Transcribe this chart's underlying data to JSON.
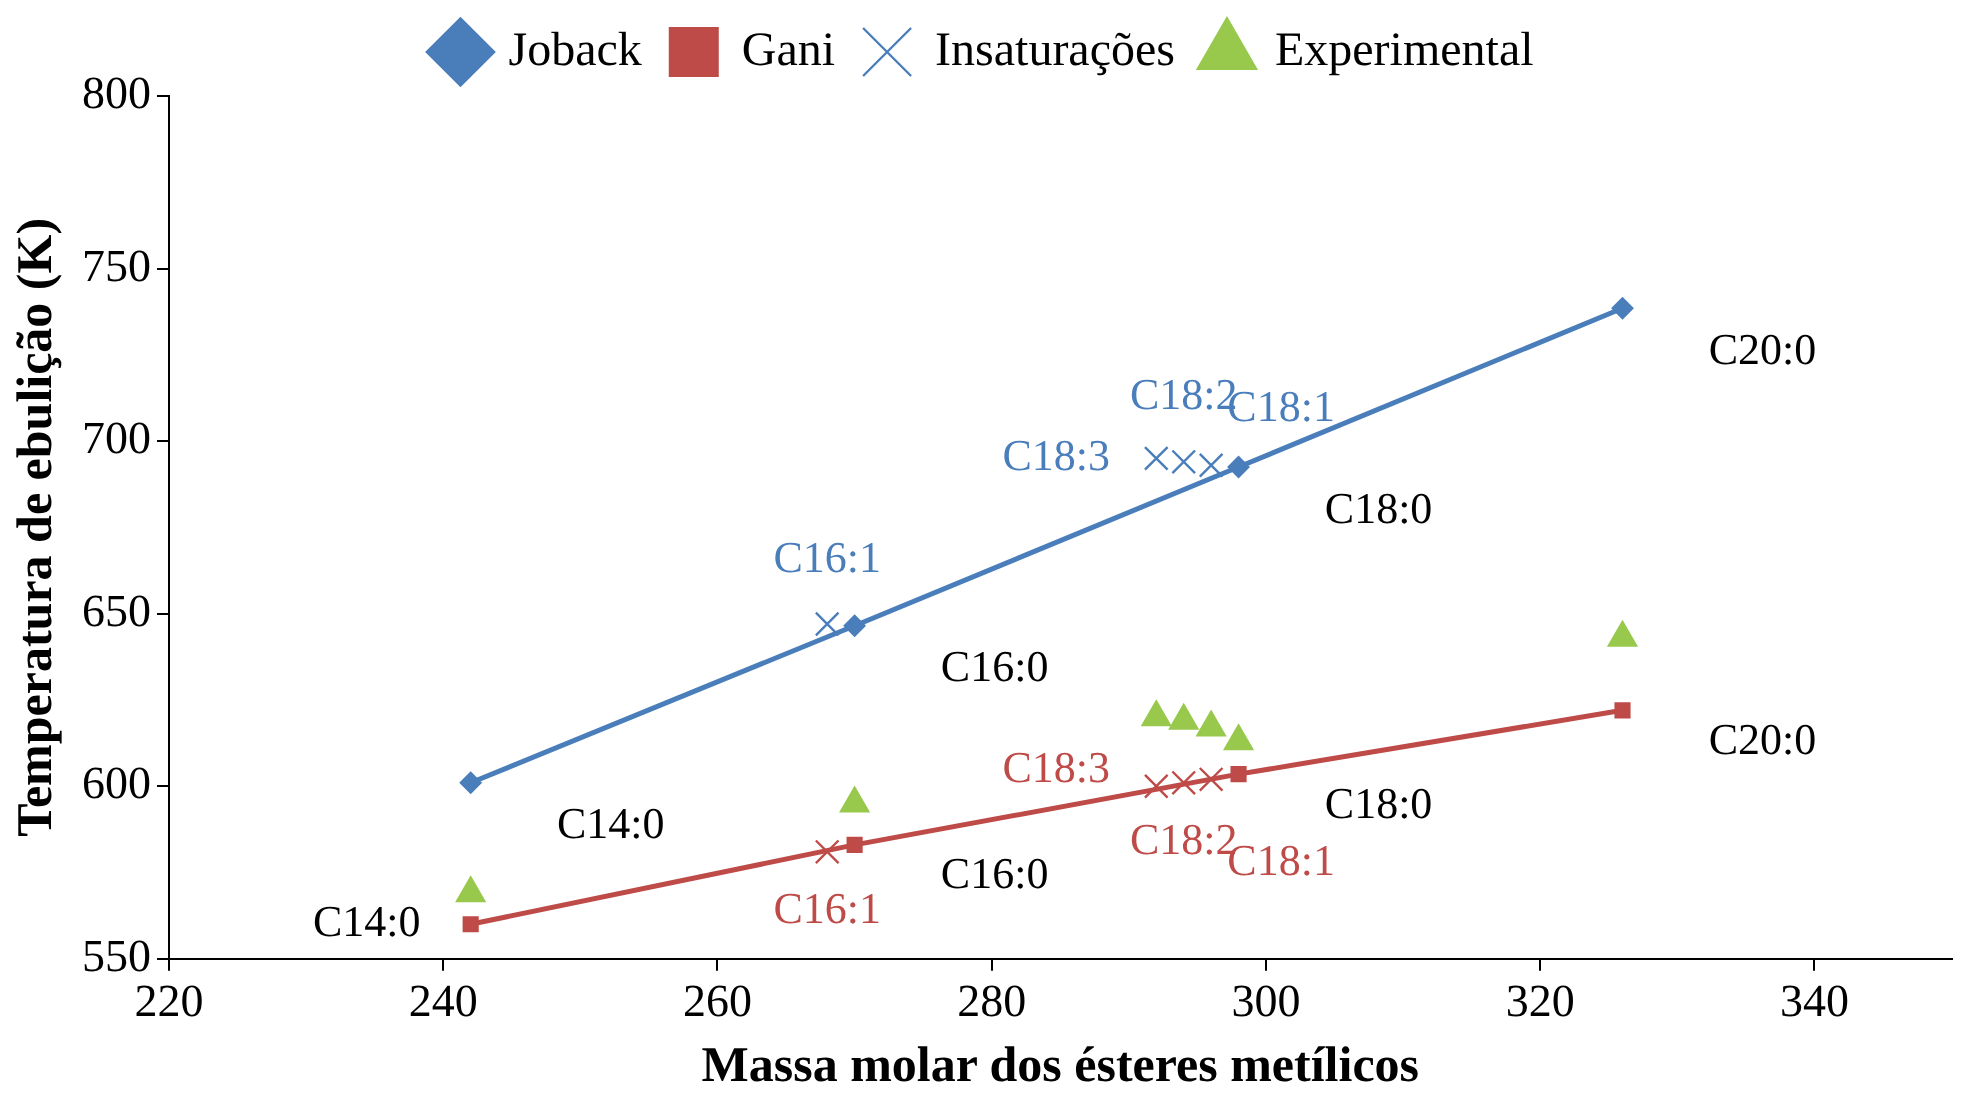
{
  "chart_data": {
    "type": "line",
    "xlabel": "Massa molar dos ésteres metílicos",
    "ylabel": "Temperatura de ebulição (K)",
    "xlim": [
      220,
      350
    ],
    "xticks": [
      220,
      240,
      260,
      280,
      300,
      320,
      340
    ],
    "ylim": [
      550,
      800
    ],
    "yticks": [
      550,
      600,
      650,
      700,
      750,
      800
    ],
    "legend": "top",
    "series": [
      {
        "name": "Joback",
        "marker": "diamond",
        "color": "#4a7ebb",
        "x": [
          242,
          270,
          298,
          326
        ],
        "values": [
          601,
          646.5,
          692.5,
          738.5
        ]
      },
      {
        "name": "Gani",
        "marker": "square",
        "color": "#be4b48",
        "x": [
          242,
          270,
          298,
          326
        ],
        "values": [
          560,
          583,
          603.5,
          622
        ]
      },
      {
        "name": "Insaturações",
        "type": "scatter",
        "marker": "cross",
        "color": "#4a7ebb",
        "x": [
          268,
          292,
          294,
          296
        ],
        "values": [
          647,
          695,
          694,
          693
        ]
      },
      {
        "type": "scatter",
        "marker": "cross",
        "color": "#be4b48",
        "x": [
          268,
          292,
          294,
          296
        ],
        "values": [
          581,
          600,
          601,
          602
        ]
      },
      {
        "name": "Experimental",
        "type": "scatter",
        "marker": "triangle",
        "color": "#98c84c",
        "x": [
          242,
          270,
          292,
          294,
          296,
          298,
          326
        ],
        "values": [
          569,
          595,
          620,
          619,
          617,
          613,
          643
        ]
      }
    ],
    "annotations": [
      {
        "text": "C16:1",
        "x": 268,
        "y": 647
      },
      {
        "text": "C18:3",
        "x": 292,
        "y": 695
      },
      {
        "text": "C18:2",
        "x": 294,
        "y": 694
      },
      {
        "text": "C18:1",
        "x": 296,
        "y": 693
      },
      {
        "text": "C16:1",
        "x": 268,
        "y": 581
      },
      {
        "text": "C18:3",
        "x": 292,
        "y": 600
      },
      {
        "text": "C18:2",
        "x": 294,
        "y": 601
      },
      {
        "text": "C18:1",
        "x": 296,
        "y": 602
      },
      {
        "text": "C14:0",
        "x": 242,
        "y": 601
      },
      {
        "text": "C16:0",
        "x": 270,
        "y": 646.5
      },
      {
        "text": "C18:0",
        "x": 298,
        "y": 692.5
      },
      {
        "text": "C20:0",
        "x": 326,
        "y": 738.5
      },
      {
        "text": "C14:0",
        "x": 242,
        "y": 560
      },
      {
        "text": "C16:0",
        "x": 270,
        "y": 583
      },
      {
        "text": "C18:0",
        "x": 298,
        "y": 603.5
      },
      {
        "text": "C20:0",
        "x": 326,
        "y": 622
      }
    ]
  }
}
